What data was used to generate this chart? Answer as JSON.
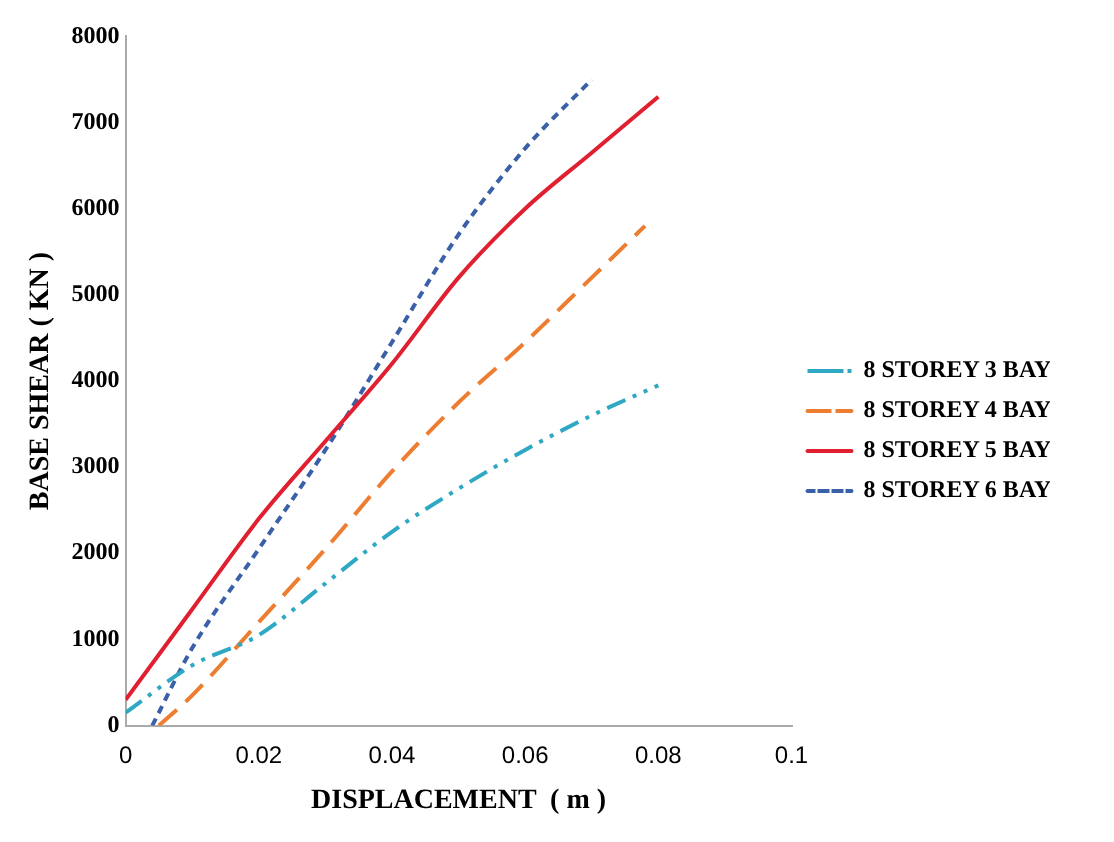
{
  "chart_data": {
    "type": "line",
    "xlabel": "DISPLACEMENT  ( m )",
    "ylabel": "BASE SHEAR ( KN )",
    "xlim": [
      0,
      0.1
    ],
    "xticks": [
      0,
      0.02,
      0.04,
      0.06,
      0.08,
      0.1
    ],
    "ylim": [
      0,
      8000
    ],
    "yticks": [
      0,
      1000,
      2000,
      3000,
      4000,
      5000,
      6000,
      7000,
      8000
    ],
    "grid": false,
    "legend": "right",
    "marker": "none",
    "series": [
      {
        "name": "8 STOREY 3 BAY",
        "color": "#2fa8c4",
        "line_style": "dashed",
        "x": [
          0,
          0.01,
          0.02,
          0.03,
          0.04,
          0.05,
          0.06,
          0.07,
          0.08
        ],
        "values": [
          150,
          700,
          1050,
          1650,
          2250,
          2750,
          3200,
          3600,
          3950
        ]
      },
      {
        "name": "8 STOREY 4 BAY",
        "color": "#ed7d31",
        "line_style": "dashed",
        "x": [
          0.005,
          0.01,
          0.02,
          0.03,
          0.04,
          0.05,
          0.06,
          0.07,
          0.078
        ],
        "values": [
          0,
          350,
          1200,
          2050,
          2950,
          3750,
          4450,
          5200,
          5800
        ]
      },
      {
        "name": "8 STOREY 5 BAY",
        "color": "#e02030",
        "line_style": "solid",
        "x": [
          0,
          0.01,
          0.02,
          0.03,
          0.04,
          0.05,
          0.06,
          0.07,
          0.08
        ],
        "values": [
          300,
          1350,
          2400,
          3300,
          4200,
          5200,
          6000,
          6650,
          7300
        ]
      },
      {
        "name": "8 STOREY 6 BAY",
        "color": "#3a60a8",
        "line_style": "dashed",
        "x": [
          0.004,
          0.01,
          0.02,
          0.03,
          0.04,
          0.05,
          0.06,
          0.07
        ],
        "values": [
          0,
          900,
          2050,
          3200,
          4450,
          5700,
          6700,
          7500
        ]
      }
    ]
  }
}
